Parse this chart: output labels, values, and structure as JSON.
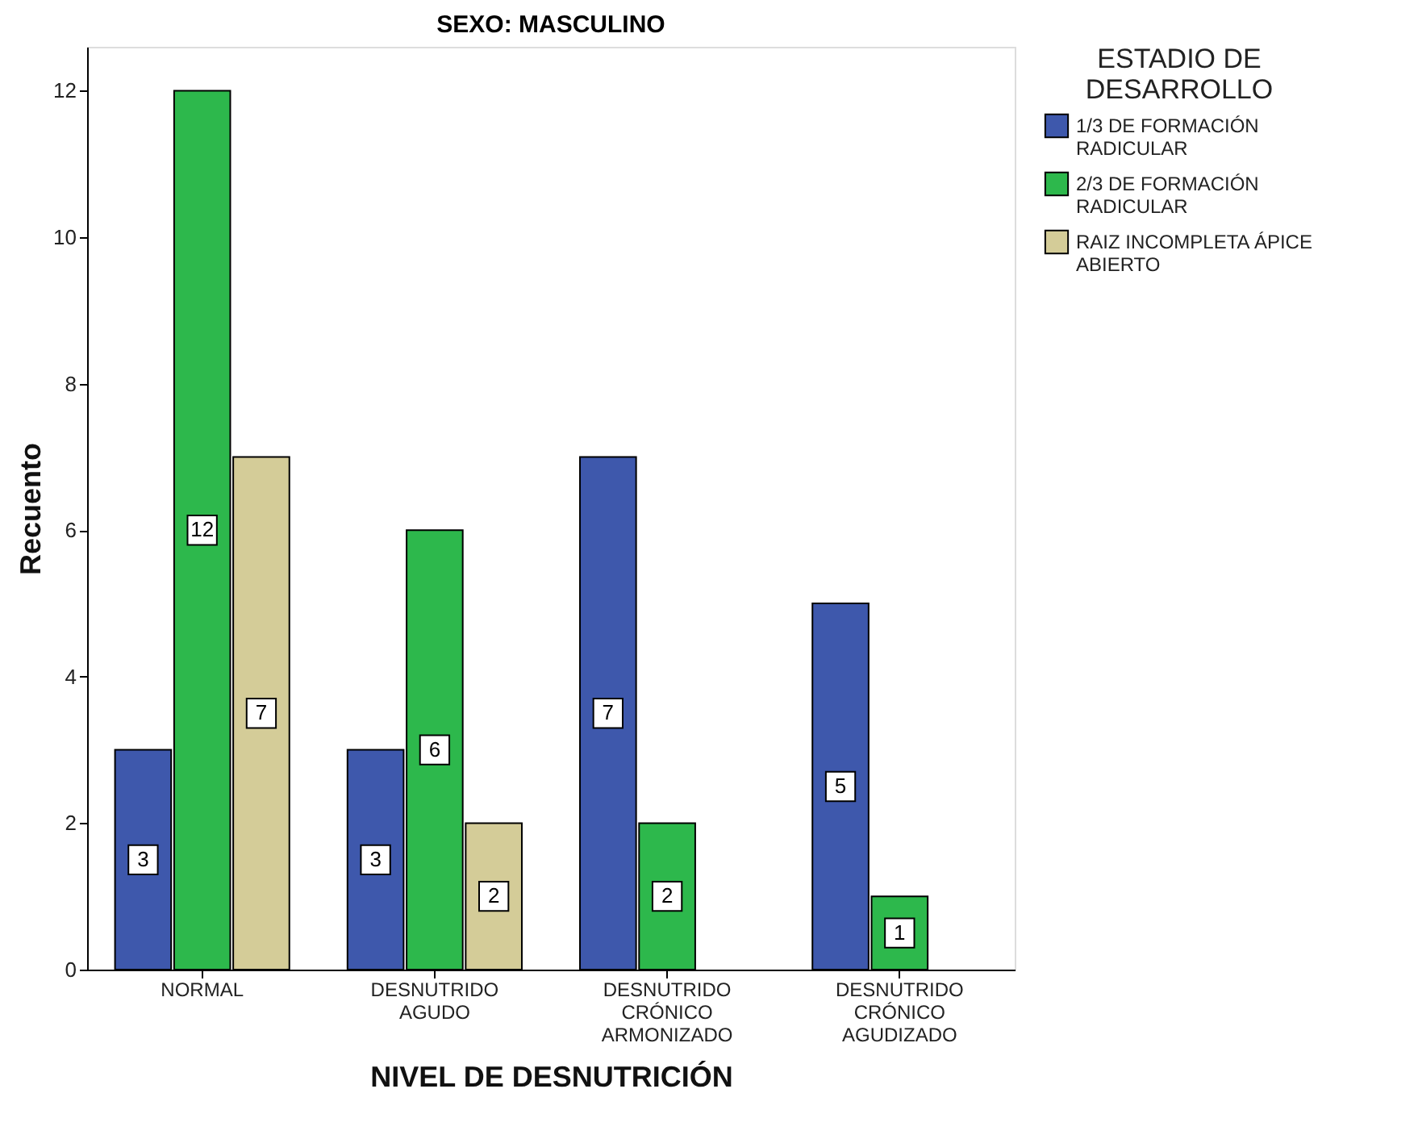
{
  "chart_data": {
    "type": "bar",
    "title": "SEXO: MASCULINO",
    "xlabel": "NIVEL  DE DESNUTRICIÓN",
    "ylabel": "Recuento",
    "legend_title": "ESTADIO DE DESARROLLO",
    "categories": [
      "NORMAL",
      "DESNUTRIDO AGUDO",
      "DESNUTRIDO CRÓNICO ARMONIZADO",
      "DESNUTRIDO CRÓNICO AGUDIZADO"
    ],
    "series": [
      {
        "name": "1/3 DE FORMACIÓN RADICULAR",
        "color": "#3e58ac",
        "values": [
          3,
          3,
          7,
          5
        ]
      },
      {
        "name": "2/3 DE FORMACIÓN RADICULAR",
        "color": "#2db84c",
        "values": [
          12,
          6,
          2,
          1
        ]
      },
      {
        "name": "RAIZ INCOMPLETA ÁPICE ABIERTO",
        "color": "#d4cc98",
        "values": [
          7,
          2,
          null,
          null
        ]
      }
    ],
    "ylim": [
      0,
      12.6
    ],
    "yticks": [
      0,
      2,
      4,
      6,
      8,
      10,
      12
    ],
    "grid": false,
    "legend": "top right",
    "data_labels": true
  }
}
